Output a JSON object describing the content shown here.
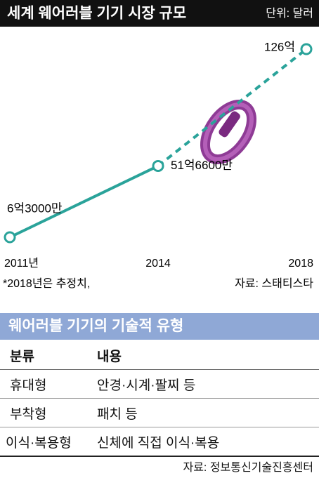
{
  "chart_data": {
    "type": "line",
    "title": "세계 웨어러블 기기 시장 규모",
    "unit": "단위: 달러",
    "categories": [
      "2011년",
      "2014",
      "2018"
    ],
    "values": [
      6.3,
      51.66,
      126
    ],
    "value_labels": [
      "6억3000만",
      "51억6600만",
      "126억"
    ],
    "color": "#2aa39a",
    "dashed_segments": [
      false,
      true
    ],
    "note": "*2018년은 추정치,",
    "source": "자료: 스태티스타"
  },
  "table": {
    "title": "웨어러블 기기의 기술적 유형",
    "columns": [
      "분류",
      "내용"
    ],
    "rows": [
      [
        "휴대형",
        "안경·시계·팔찌 등"
      ],
      [
        "부착형",
        "패치 등"
      ],
      [
        "이식·복용형",
        "신체에 직접 이식·복용"
      ]
    ],
    "source": "자료: 정보통신기술진흥센터"
  }
}
